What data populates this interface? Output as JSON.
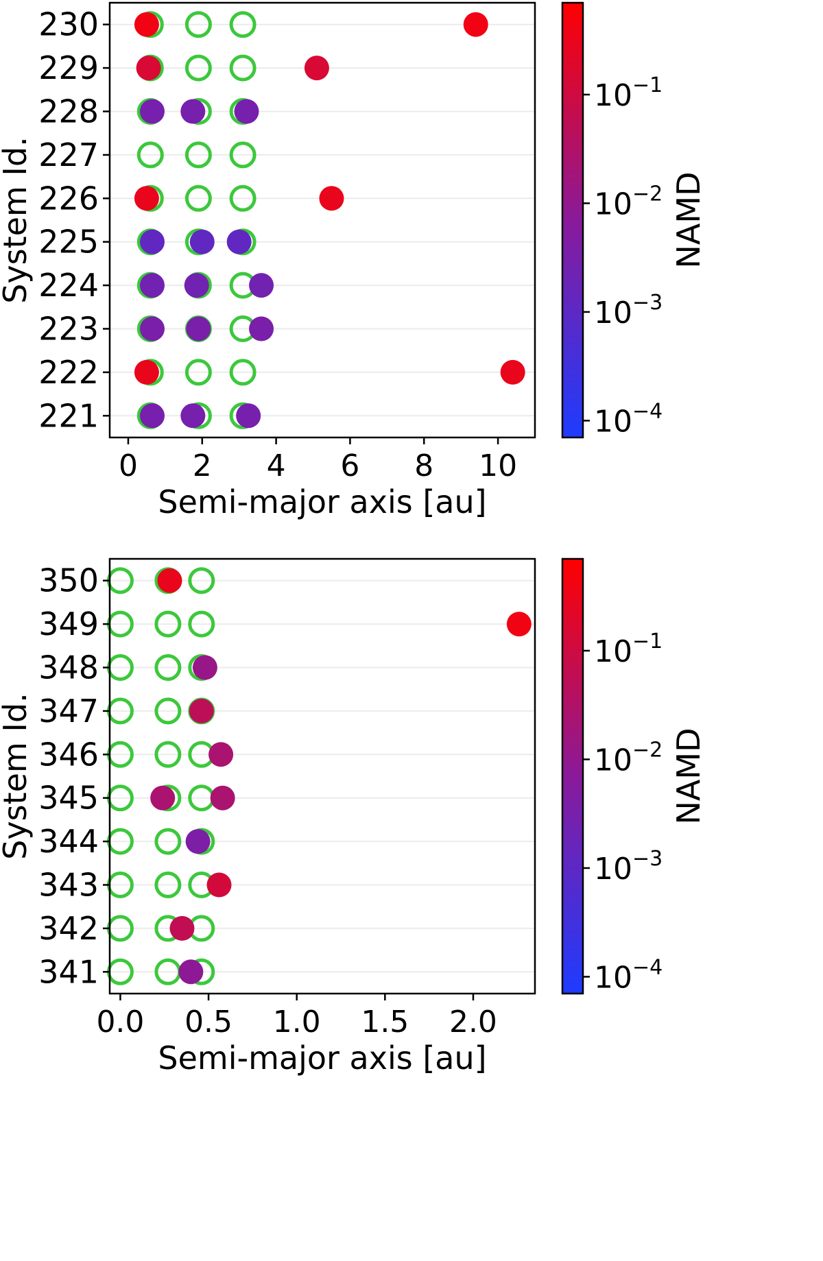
{
  "colors": {
    "empty_marker": "#3cc83c",
    "colormap_low": "#1e3cff",
    "colormap_mid": "#8a1a9a",
    "colormap_high": "#ff0000",
    "grid": "#ebebeb"
  },
  "chart_data": [
    {
      "type": "scatter",
      "xlabel": "Semi-major axis [au]",
      "ylabel": "System Id.",
      "xlim": [
        -0.5,
        11.0
      ],
      "x_ticks": [
        "0",
        "2",
        "4",
        "6",
        "8",
        "10"
      ],
      "x_tick_values": [
        0,
        2,
        4,
        6,
        8,
        10
      ],
      "y_categories": [
        "221",
        "222",
        "223",
        "224",
        "225",
        "226",
        "227",
        "228",
        "229",
        "230"
      ],
      "colorbar": {
        "label": "NAMD",
        "scale": "log",
        "range": [
          7e-05,
          0.7
        ],
        "ticks": [
          {
            "value": 0.1,
            "base": "10",
            "exp": "−1"
          },
          {
            "value": 0.01,
            "base": "10",
            "exp": "−2"
          },
          {
            "value": 0.001,
            "base": "10",
            "exp": "−3"
          },
          {
            "value": 0.0001,
            "base": "10",
            "exp": "−4"
          }
        ]
      },
      "initial_planets": [
        {
          "system": "230",
          "a": [
            0.6,
            1.9,
            3.1
          ]
        },
        {
          "system": "229",
          "a": [
            0.6,
            1.9,
            3.1
          ]
        },
        {
          "system": "228",
          "a": [
            0.6,
            1.9,
            3.1
          ]
        },
        {
          "system": "227",
          "a": [
            0.6,
            1.9,
            3.1
          ]
        },
        {
          "system": "226",
          "a": [
            0.6,
            1.9,
            3.1
          ]
        },
        {
          "system": "225",
          "a": [
            0.6,
            1.9,
            3.1
          ]
        },
        {
          "system": "224",
          "a": [
            0.6,
            1.9,
            3.1
          ]
        },
        {
          "system": "223",
          "a": [
            0.6,
            1.9,
            3.1
          ]
        },
        {
          "system": "222",
          "a": [
            0.6,
            1.9,
            3.1
          ]
        },
        {
          "system": "221",
          "a": [
            0.6,
            1.9,
            3.1
          ]
        }
      ],
      "final_planets": [
        {
          "system": "230",
          "a": 0.5,
          "namd": 0.4
        },
        {
          "system": "230",
          "a": 9.4,
          "namd": 0.4
        },
        {
          "system": "229",
          "a": 0.55,
          "namd": 0.15
        },
        {
          "system": "229",
          "a": 5.1,
          "namd": 0.15
        },
        {
          "system": "228",
          "a": 0.65,
          "namd": 0.003
        },
        {
          "system": "228",
          "a": 1.75,
          "namd": 0.003
        },
        {
          "system": "228",
          "a": 3.2,
          "namd": 0.003
        },
        {
          "system": "226",
          "a": 0.5,
          "namd": 0.3
        },
        {
          "system": "226",
          "a": 5.5,
          "namd": 0.3
        },
        {
          "system": "225",
          "a": 0.65,
          "namd": 0.0012
        },
        {
          "system": "225",
          "a": 2.0,
          "namd": 0.0012
        },
        {
          "system": "225",
          "a": 3.0,
          "namd": 0.0012
        },
        {
          "system": "224",
          "a": 0.65,
          "namd": 0.0025
        },
        {
          "system": "224",
          "a": 1.85,
          "namd": 0.0025
        },
        {
          "system": "224",
          "a": 3.6,
          "namd": 0.0025
        },
        {
          "system": "223",
          "a": 0.65,
          "namd": 0.0035
        },
        {
          "system": "223",
          "a": 1.9,
          "namd": 0.0035
        },
        {
          "system": "223",
          "a": 3.6,
          "namd": 0.0035
        },
        {
          "system": "222",
          "a": 0.5,
          "namd": 0.3
        },
        {
          "system": "222",
          "a": 10.4,
          "namd": 0.3
        },
        {
          "system": "221",
          "a": 0.65,
          "namd": 0.003
        },
        {
          "system": "221",
          "a": 1.75,
          "namd": 0.003
        },
        {
          "system": "221",
          "a": 3.25,
          "namd": 0.003
        }
      ]
    },
    {
      "type": "scatter",
      "xlabel": "Semi-major axis [au]",
      "ylabel": "System Id.",
      "xlim": [
        -0.06,
        2.35
      ],
      "x_ticks": [
        "0.0",
        "0.5",
        "1.0",
        "1.5",
        "2.0"
      ],
      "x_tick_values": [
        0.0,
        0.5,
        1.0,
        1.5,
        2.0
      ],
      "y_categories": [
        "341",
        "342",
        "343",
        "344",
        "345",
        "346",
        "347",
        "348",
        "349",
        "350"
      ],
      "colorbar": {
        "label": "NAMD",
        "scale": "log",
        "range": [
          7e-05,
          0.7
        ],
        "ticks": [
          {
            "value": 0.1,
            "base": "10",
            "exp": "−1"
          },
          {
            "value": 0.01,
            "base": "10",
            "exp": "−2"
          },
          {
            "value": 0.001,
            "base": "10",
            "exp": "−3"
          },
          {
            "value": 0.0001,
            "base": "10",
            "exp": "−4"
          }
        ]
      },
      "initial_planets": [
        {
          "system": "350",
          "a": [
            0.0,
            0.27,
            0.46
          ]
        },
        {
          "system": "349",
          "a": [
            0.0,
            0.27,
            0.46
          ]
        },
        {
          "system": "348",
          "a": [
            0.0,
            0.27,
            0.46
          ]
        },
        {
          "system": "347",
          "a": [
            0.0,
            0.27,
            0.46
          ]
        },
        {
          "system": "346",
          "a": [
            0.0,
            0.27,
            0.46
          ]
        },
        {
          "system": "345",
          "a": [
            0.0,
            0.27,
            0.46
          ]
        },
        {
          "system": "344",
          "a": [
            0.0,
            0.27,
            0.46
          ]
        },
        {
          "system": "343",
          "a": [
            0.0,
            0.27,
            0.46
          ]
        },
        {
          "system": "342",
          "a": [
            0.0,
            0.27,
            0.46
          ]
        },
        {
          "system": "341",
          "a": [
            0.0,
            0.27,
            0.46
          ]
        }
      ],
      "final_planets": [
        {
          "system": "350",
          "a": 0.28,
          "namd": 0.3
        },
        {
          "system": "349",
          "a": 2.26,
          "namd": 0.4
        },
        {
          "system": "348",
          "a": 0.48,
          "namd": 0.012
        },
        {
          "system": "347",
          "a": 0.46,
          "namd": 0.05
        },
        {
          "system": "346",
          "a": 0.57,
          "namd": 0.025
        },
        {
          "system": "345",
          "a": 0.24,
          "namd": 0.025
        },
        {
          "system": "345",
          "a": 0.58,
          "namd": 0.025
        },
        {
          "system": "344",
          "a": 0.44,
          "namd": 0.004
        },
        {
          "system": "343",
          "a": 0.56,
          "namd": 0.12
        },
        {
          "system": "342",
          "a": 0.35,
          "namd": 0.06
        },
        {
          "system": "341",
          "a": 0.4,
          "namd": 0.008
        }
      ]
    }
  ]
}
